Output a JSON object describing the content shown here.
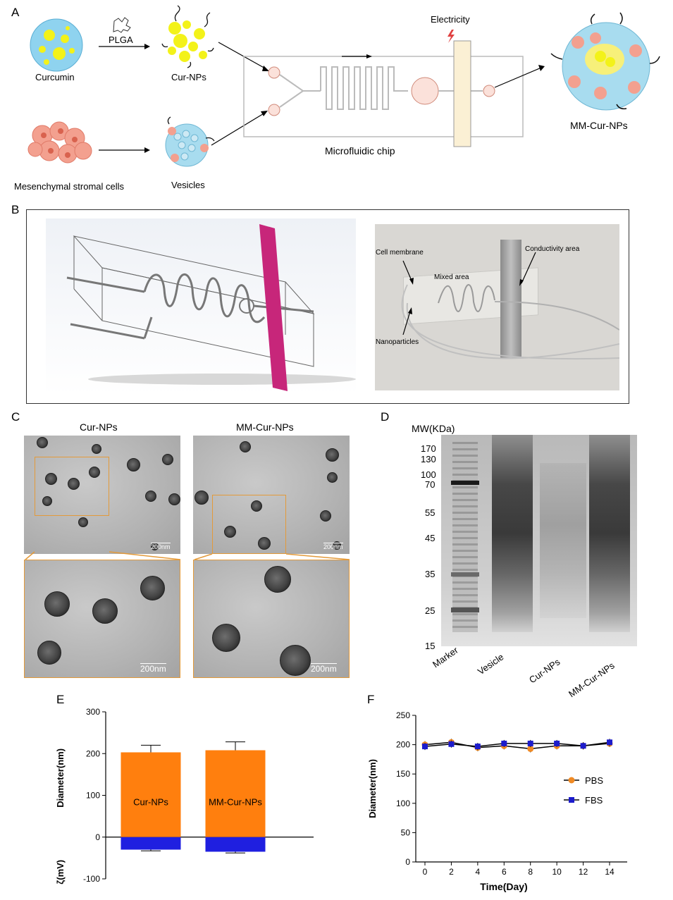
{
  "panels": {
    "a": "A",
    "b": "B",
    "c": "C",
    "d": "D",
    "e": "E",
    "f": "F"
  },
  "schematic": {
    "curcumin": "Curcumin",
    "plga": "PLGA",
    "cur_nps": "Cur-NPs",
    "msc": "Mesenchymal stromal cells",
    "vesicles": "Vesicles",
    "electricity": "Electricity",
    "chip": "Microfluidic chip",
    "mm_cur_nps": "MM-Cur-NPs"
  },
  "photo": {
    "cell_membrane": "Cell membrane",
    "mixed_area": "Mixed area",
    "conductivity_area": "Conductivity area",
    "nanoparticles": "Nanoparticles"
  },
  "tem": {
    "left_title": "Cur-NPs",
    "right_title": "MM-Cur-NPs",
    "scale": "200nm"
  },
  "gel": {
    "mw_label": "MW(KDa)",
    "markers": [
      "170",
      "130",
      "100",
      "70",
      "55",
      "45",
      "35",
      "25",
      "15"
    ],
    "lanes": [
      "Marker",
      "Vesicle",
      "Cur-NPs",
      "MM-Cur-NPs"
    ]
  },
  "chart_data": [
    {
      "type": "bar",
      "categories": [
        "Cur-NPs",
        "MM-Cur-NPs"
      ],
      "series": [
        {
          "name": "Diameter(nm)",
          "values": [
            203,
            208
          ],
          "errors": [
            17,
            20
          ],
          "color": "#ff7f0e"
        },
        {
          "name": "ζ(mV)",
          "values": [
            -30,
            -35
          ],
          "errors": [
            3,
            3
          ],
          "color": "#1f1fe0"
        }
      ],
      "ylabel_top": "Diameter(nm)",
      "ylabel_bottom": "ζ(mV)",
      "yticks": [
        "300",
        "200",
        "100",
        "0",
        "-100"
      ],
      "ylim": [
        -100,
        300
      ]
    },
    {
      "type": "line",
      "x": [
        0,
        2,
        4,
        6,
        8,
        10,
        12,
        14
      ],
      "xticks": [
        "0",
        "2",
        "4",
        "6",
        "8",
        "10",
        "12",
        "14"
      ],
      "yticks": [
        "0",
        "50",
        "100",
        "150",
        "200",
        "250"
      ],
      "series": [
        {
          "name": "PBS",
          "values": [
            200,
            204,
            195,
            198,
            193,
            198,
            198,
            202
          ],
          "color": "#f08a24"
        },
        {
          "name": "FBS",
          "values": [
            197,
            201,
            197,
            202,
            202,
            202,
            198,
            204
          ],
          "color": "#1c1ccc"
        }
      ],
      "xlabel": "Time(Day)",
      "ylabel": "Diameter(nm)",
      "ylim": [
        0,
        250
      ],
      "legend": "right"
    }
  ]
}
